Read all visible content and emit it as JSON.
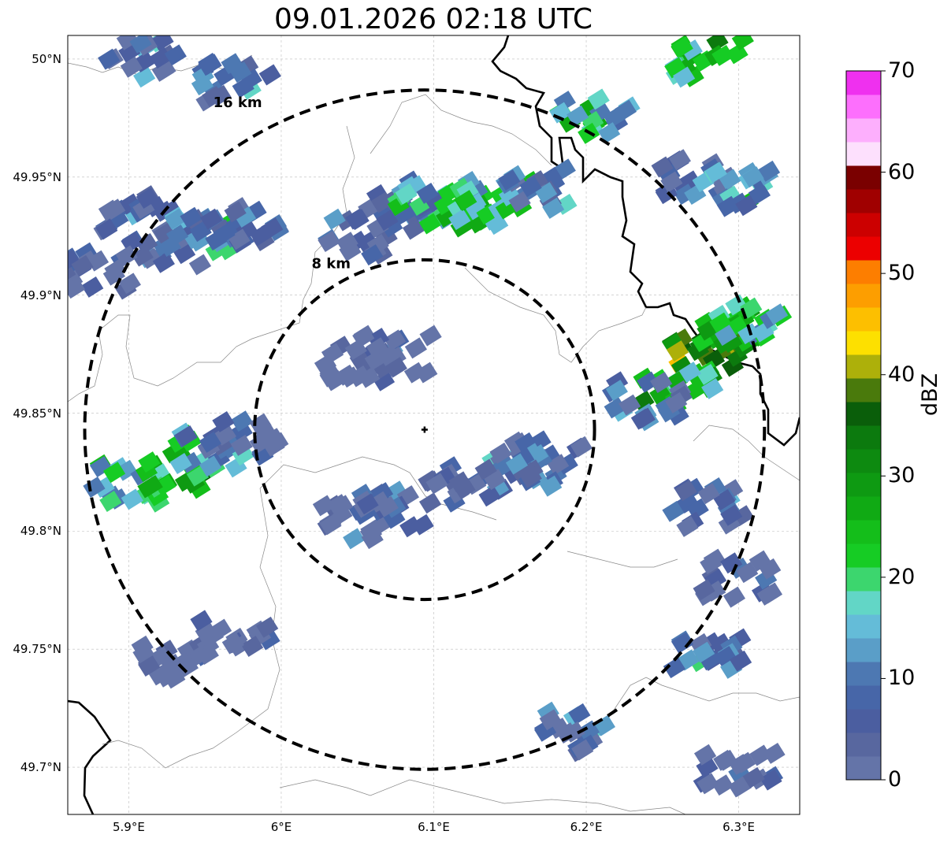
{
  "title": "09.01.2026 02:18 UTC",
  "map": {
    "lon_range": [
      5.86,
      6.34
    ],
    "lat_range": [
      49.68,
      50.01
    ],
    "radar_site": {
      "lon": 6.094,
      "lat": 49.843
    },
    "rings": [
      {
        "radius_km": 8,
        "label": "8 km"
      },
      {
        "radius_km": 16,
        "label": "16 km"
      }
    ],
    "gridlines": true,
    "x_ticks": [
      {
        "value": 5.9,
        "label": "5.9°E"
      },
      {
        "value": 6.0,
        "label": "6°E"
      },
      {
        "value": 6.1,
        "label": "6.1°E"
      },
      {
        "value": 6.2,
        "label": "6.2°E"
      },
      {
        "value": 6.3,
        "label": "6.3°E"
      }
    ],
    "y_ticks": [
      {
        "value": 50.0,
        "label": "50°N"
      },
      {
        "value": 49.95,
        "label": "49.95°N"
      },
      {
        "value": 49.9,
        "label": "49.9°N"
      },
      {
        "value": 49.85,
        "label": "49.85°N"
      },
      {
        "value": 49.8,
        "label": "49.8°N"
      },
      {
        "value": 49.75,
        "label": "49.75°N"
      },
      {
        "value": 49.7,
        "label": "49.7°N"
      }
    ]
  },
  "colorbar": {
    "label": "dBZ",
    "min": 0,
    "max": 70,
    "ticks": [
      "0",
      "10",
      "20",
      "30",
      "40",
      "50",
      "60",
      "70"
    ],
    "colors": [
      "#6474a8",
      "#58679f",
      "#4b5ea0",
      "#4766a8",
      "#4d78b2",
      "#5a9ec8",
      "#64bcd8",
      "#62d6c6",
      "#3cd66e",
      "#16cc24",
      "#14be1a",
      "#10aa14",
      "#0e9a12",
      "#0d8a10",
      "#0c7a0e",
      "#0a5e0a",
      "#4a7a0c",
      "#adb00a",
      "#fde000",
      "#fdbf00",
      "#fd9e00",
      "#fd7e00",
      "#ec0000",
      "#cc0000",
      "#a00000",
      "#7a0000",
      "#fde0fd",
      "#fdaffd",
      "#fd6ffd",
      "#ef30ef"
    ]
  },
  "reflectivity_cells": [
    {
      "lon": 5.905,
      "lat": 49.935,
      "dbz": 10
    },
    {
      "lon": 5.925,
      "lat": 49.92,
      "dbz": 14
    },
    {
      "lon": 5.95,
      "lat": 49.925,
      "dbz": 16
    },
    {
      "lon": 5.975,
      "lat": 49.93,
      "dbz": 12
    },
    {
      "lon": 5.88,
      "lat": 49.91,
      "dbz": 8
    },
    {
      "lon": 6.075,
      "lat": 49.935,
      "dbz": 10
    },
    {
      "lon": 6.1,
      "lat": 49.94,
      "dbz": 20
    },
    {
      "lon": 6.12,
      "lat": 49.935,
      "dbz": 28
    },
    {
      "lon": 6.14,
      "lat": 49.94,
      "dbz": 24
    },
    {
      "lon": 6.165,
      "lat": 49.945,
      "dbz": 14
    },
    {
      "lon": 6.05,
      "lat": 49.925,
      "dbz": 8
    },
    {
      "lon": 6.28,
      "lat": 49.875,
      "dbz": 42
    },
    {
      "lon": 6.295,
      "lat": 49.885,
      "dbz": 34
    },
    {
      "lon": 6.26,
      "lat": 49.86,
      "dbz": 28
    },
    {
      "lon": 6.31,
      "lat": 49.89,
      "dbz": 24
    },
    {
      "lon": 6.24,
      "lat": 49.855,
      "dbz": 14
    },
    {
      "lon": 5.9,
      "lat": 49.82,
      "dbz": 22
    },
    {
      "lon": 5.93,
      "lat": 49.825,
      "dbz": 30
    },
    {
      "lon": 5.955,
      "lat": 49.835,
      "dbz": 18
    },
    {
      "lon": 5.975,
      "lat": 49.84,
      "dbz": 10
    },
    {
      "lon": 6.175,
      "lat": 49.83,
      "dbz": 10
    },
    {
      "lon": 6.155,
      "lat": 49.825,
      "dbz": 14
    },
    {
      "lon": 6.12,
      "lat": 49.82,
      "dbz": 8
    },
    {
      "lon": 6.07,
      "lat": 49.81,
      "dbz": 12
    },
    {
      "lon": 6.05,
      "lat": 49.805,
      "dbz": 8
    },
    {
      "lon": 6.075,
      "lat": 49.875,
      "dbz": 6
    },
    {
      "lon": 6.05,
      "lat": 49.87,
      "dbz": 5
    },
    {
      "lon": 6.205,
      "lat": 49.975,
      "dbz": 22
    },
    {
      "lon": 6.27,
      "lat": 49.95,
      "dbz": 12
    },
    {
      "lon": 6.3,
      "lat": 49.945,
      "dbz": 20
    },
    {
      "lon": 5.97,
      "lat": 49.99,
      "dbz": 14
    },
    {
      "lon": 5.91,
      "lat": 50.0,
      "dbz": 12
    },
    {
      "lon": 6.28,
      "lat": 50.0,
      "dbz": 28
    },
    {
      "lon": 6.28,
      "lat": 49.81,
      "dbz": 12
    },
    {
      "lon": 6.28,
      "lat": 49.75,
      "dbz": 14
    },
    {
      "lon": 6.3,
      "lat": 49.78,
      "dbz": 6
    },
    {
      "lon": 6.19,
      "lat": 49.715,
      "dbz": 12
    },
    {
      "lon": 6.3,
      "lat": 49.7,
      "dbz": 6
    },
    {
      "lon": 5.93,
      "lat": 49.745,
      "dbz": 6
    },
    {
      "lon": 5.97,
      "lat": 49.755,
      "dbz": 6
    }
  ]
}
